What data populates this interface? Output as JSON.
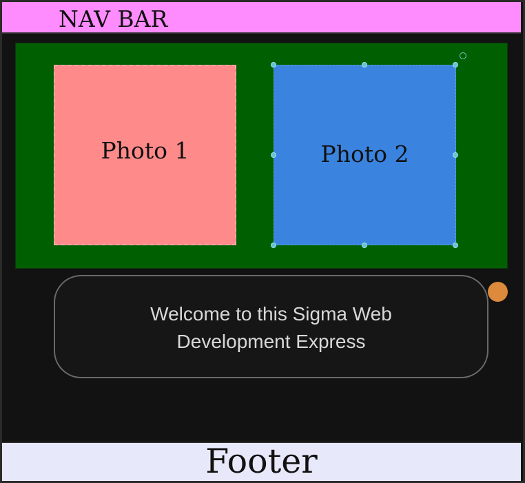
{
  "navbar": {
    "title": "NAV BAR"
  },
  "gallery": {
    "photos": [
      {
        "label": "Photo 1",
        "color": "#ff8a8a"
      },
      {
        "label": "Photo 2",
        "color": "#3a84e0",
        "selected": true
      }
    ],
    "background": "#005f00"
  },
  "welcome": {
    "lines": [
      "Welcome to this Sigma Web",
      "Development Express"
    ]
  },
  "status_dot": {
    "color": "#dd8a3c"
  },
  "footer": {
    "text": "Footer"
  },
  "colors": {
    "page_bg": "#121212",
    "navbar_bg": "#ff8cff",
    "footer_bg": "#e8e8fb",
    "selection_handle": "#66c2d4"
  }
}
